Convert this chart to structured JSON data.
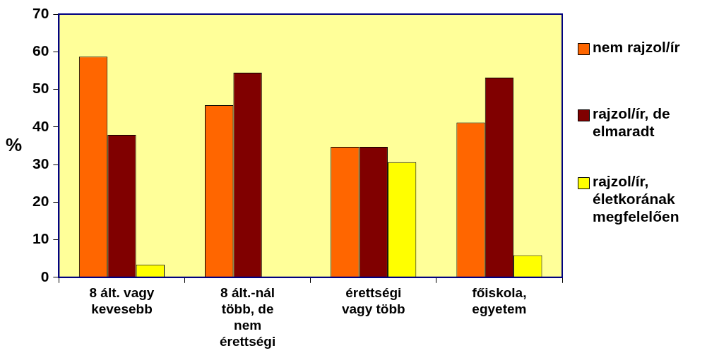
{
  "chart_data": {
    "type": "bar",
    "ylabel": "%",
    "categories": [
      "8 ált. vagy kevesebb",
      "8 ált.-nál több, de nem érettségi",
      "érettségi vagy több",
      "főiskola, egyetem"
    ],
    "series": [
      {
        "name": "nem rajzol/ír",
        "color": "#ff6600",
        "values": [
          58.7,
          45.8,
          34.7,
          41.2
        ]
      },
      {
        "name": "rajzol/ír, de elmaradt",
        "color": "#800000",
        "values": [
          37.9,
          54.4,
          34.7,
          53.1
        ]
      },
      {
        "name": "rajzol/ír, életkorának megfelelően",
        "color": "#ffff00",
        "values": [
          3.4,
          0,
          30.6,
          5.9
        ]
      }
    ],
    "ylim": [
      0,
      70
    ],
    "yticks": [
      0,
      10,
      20,
      30,
      40,
      50,
      60,
      70
    ],
    "grid": false,
    "legend": "right"
  }
}
